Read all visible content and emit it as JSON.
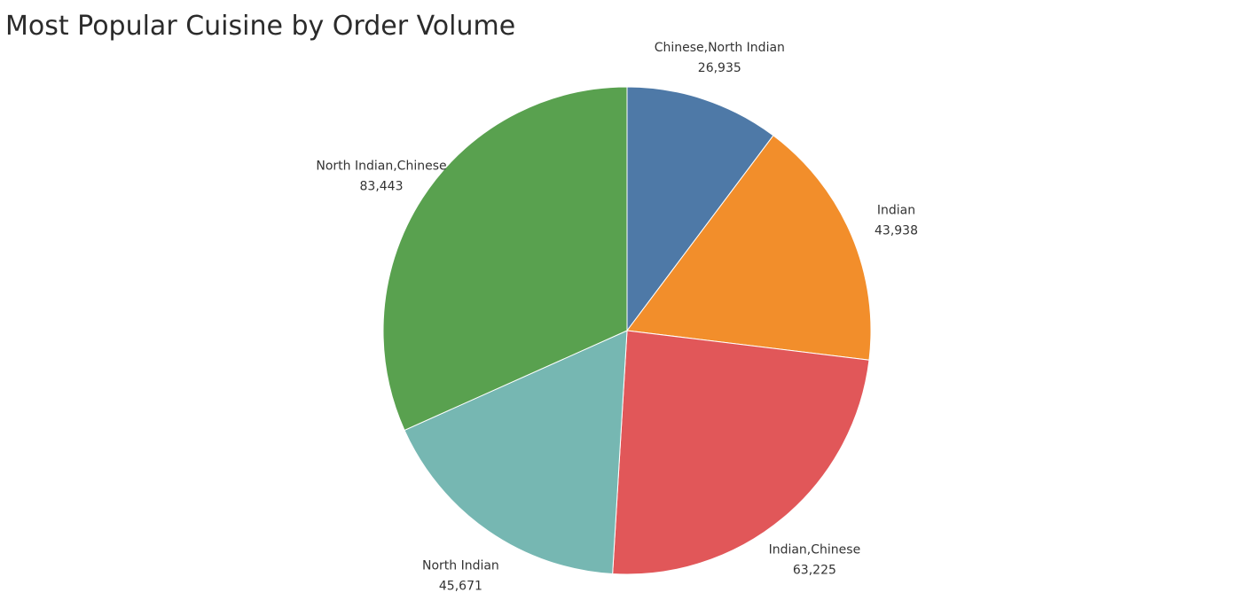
{
  "chart_data": {
    "type": "pie",
    "title": "Most Popular Cuisine by Order Volume",
    "slices": [
      {
        "label": "Chinese,North Indian",
        "value": 26935,
        "value_text": "26,935",
        "color": "#4e79a7"
      },
      {
        "label": "Indian",
        "value": 43938,
        "value_text": "43,938",
        "color": "#f28e2b"
      },
      {
        "label": "Indian,Chinese",
        "value": 63225,
        "value_text": "63,225",
        "color": "#e15759"
      },
      {
        "label": "North Indian",
        "value": 45671,
        "value_text": "45,671",
        "color": "#76b7b2"
      },
      {
        "label": "North Indian,Chinese",
        "value": 83443,
        "value_text": "83,443",
        "color": "#59a14f"
      }
    ],
    "start_angle_deg": 0,
    "direction": "clockwise",
    "legend": "none"
  }
}
